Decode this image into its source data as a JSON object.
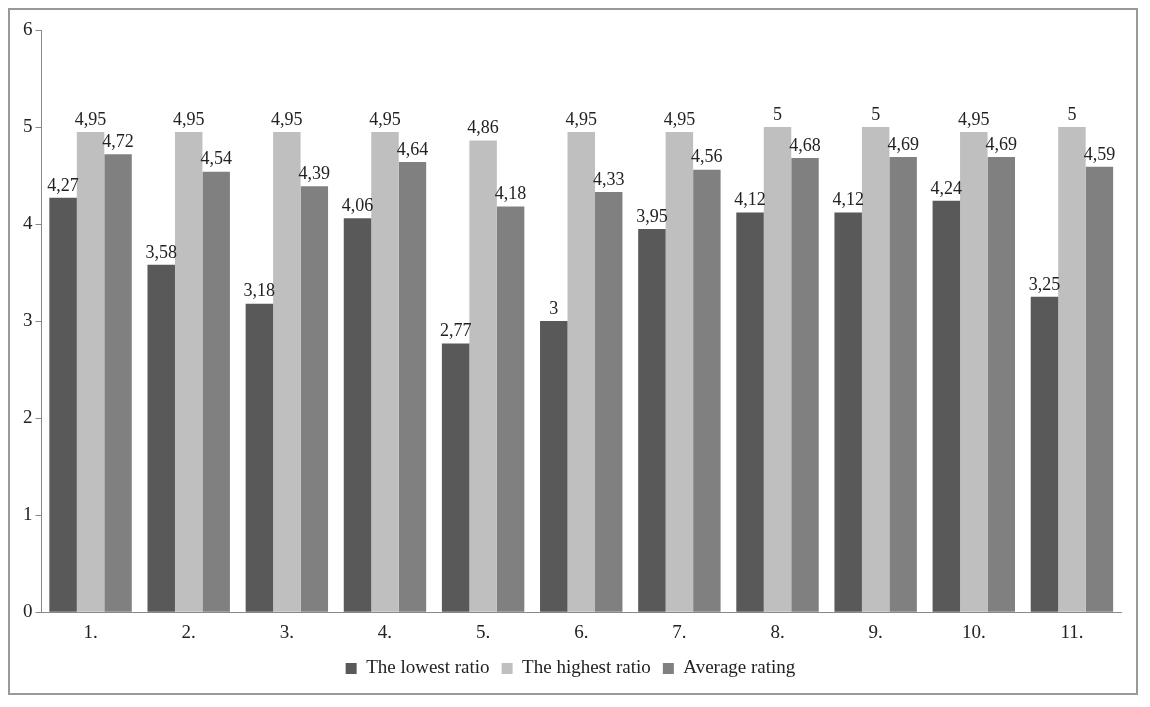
{
  "chart_data": {
    "type": "bar",
    "categories": [
      "1.",
      "2.",
      "3.",
      "4.",
      "5.",
      "6.",
      "7.",
      "8.",
      "9.",
      "10.",
      "11."
    ],
    "series": [
      {
        "name": "The lowest ratio",
        "color": "#595959",
        "values": [
          4.27,
          3.58,
          3.18,
          4.06,
          2.77,
          3,
          3.95,
          4.12,
          4.12,
          4.24,
          3.25
        ],
        "value_labels": [
          "4,27",
          "3,58",
          "3,18",
          "4,06",
          "2,77",
          "3",
          "3,95",
          "4,12",
          "4,12",
          "4,24",
          "3,25"
        ]
      },
      {
        "name": "The highest ratio",
        "color": "#bfbfbf",
        "values": [
          4.95,
          4.95,
          4.95,
          4.95,
          4.86,
          4.95,
          4.95,
          5,
          5,
          4.95,
          5
        ],
        "value_labels": [
          "4,95",
          "4,95",
          "4,95",
          "4,95",
          "4,86",
          "4,95",
          "4,95",
          "5",
          "5",
          "4,95",
          "5"
        ]
      },
      {
        "name": "Average rating",
        "color": "#808080",
        "values": [
          4.72,
          4.54,
          4.39,
          4.64,
          4.18,
          4.33,
          4.56,
          4.68,
          4.69,
          4.69,
          4.59
        ],
        "value_labels": [
          "4,72",
          "4,54",
          "4,39",
          "4,64",
          "4,18",
          "4,33",
          "4,56",
          "4,68",
          "4,69",
          "4,69",
          "4,59"
        ]
      }
    ],
    "ylim": [
      0,
      6
    ],
    "yticks": [
      0,
      1,
      2,
      3,
      4,
      5,
      6
    ],
    "grid": false,
    "legend": "bottom"
  }
}
